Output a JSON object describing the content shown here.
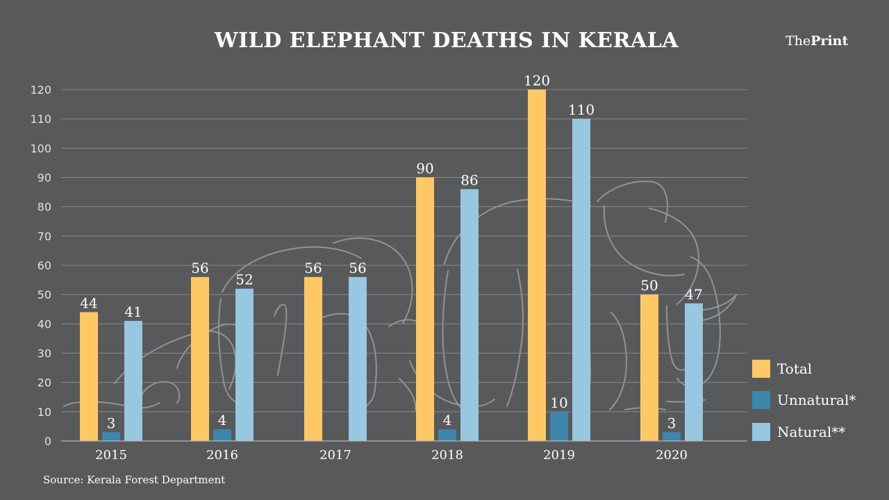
{
  "brand": {
    "light": "The",
    "bold": "Print"
  },
  "source": "Source: Kerala Forest Department",
  "colors": {
    "background": "#58595b",
    "total": "#fec964",
    "unnatural": "#3d85ab",
    "natural": "#98c7e0"
  },
  "chart_data": {
    "type": "bar",
    "title": "WILD ELEPHANT DEATHS IN KERALA",
    "xlabel": "",
    "ylabel": "",
    "ylim": [
      0,
      120
    ],
    "yticks": [
      0,
      10,
      20,
      30,
      40,
      50,
      60,
      70,
      80,
      90,
      100,
      110,
      120
    ],
    "grid": true,
    "legend_position": "bottom-right",
    "categories": [
      "2015",
      "2016",
      "2017",
      "2018",
      "2019",
      "2020"
    ],
    "series": [
      {
        "name": "Total",
        "color": "#fec964",
        "values": [
          44,
          56,
          56,
          90,
          120,
          50
        ]
      },
      {
        "name": "Unnatural*",
        "color": "#3d85ab",
        "values": [
          3,
          4,
          null,
          4,
          10,
          3
        ]
      },
      {
        "name": "Natural**",
        "color": "#98c7e0",
        "values": [
          41,
          52,
          56,
          86,
          110,
          47
        ]
      }
    ]
  }
}
